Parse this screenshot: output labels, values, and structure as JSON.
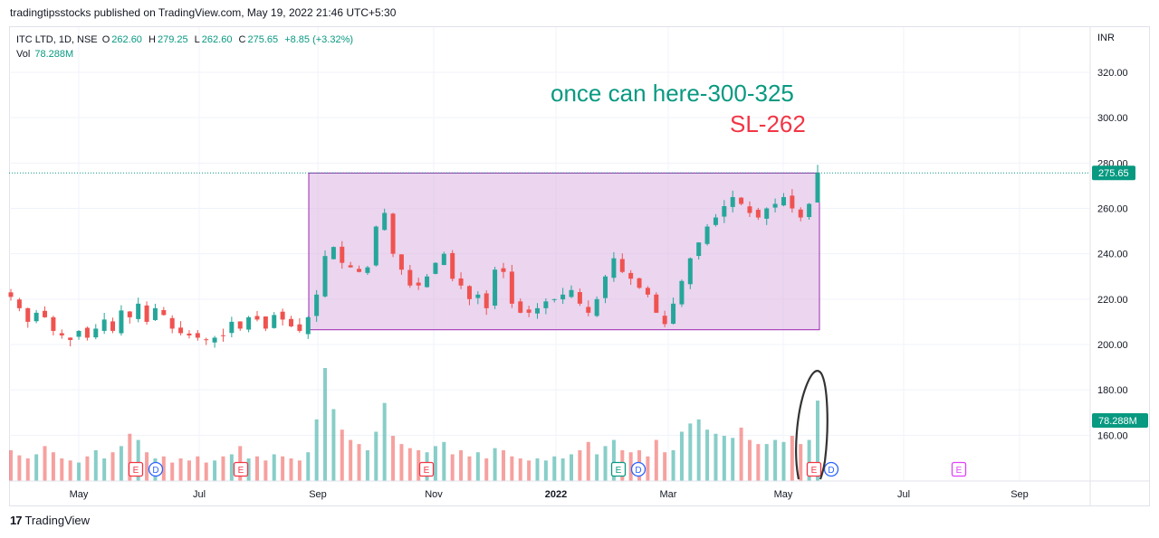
{
  "publisher": "tradingtipsstocks published on TradingView.com, May 19, 2022 21:46 UTC+5:30",
  "footer": {
    "brand": "TradingView"
  },
  "legend": {
    "symbol": "ITC LTD, 1D, NSE",
    "o_label": "O",
    "o": "262.60",
    "h_label": "H",
    "h": "279.25",
    "l_label": "L",
    "l": "262.60",
    "c_label": "C",
    "c": "275.65",
    "chg": "+8.85 (+3.32%)",
    "vol_label": "Vol",
    "vol": "78.288M"
  },
  "colors": {
    "up": "#26a69a",
    "down": "#ef5350",
    "box_fill": "#e1bee7",
    "box_stroke": "#9c27b0",
    "note_green": "#089981",
    "note_red": "#f23645",
    "badge_price": "#089981"
  },
  "annotations": {
    "target": "once can here-300-325",
    "stop": "SL-262"
  },
  "chart_data": {
    "type": "candlestick",
    "currency": "INR",
    "y_ticks": [
      "320.00",
      "300.00",
      "280.00",
      "260.00",
      "240.00",
      "220.00",
      "200.00",
      "180.00",
      "160.00"
    ],
    "x_ticks": [
      "May",
      "Jul",
      "Sep",
      "Nov",
      "2022",
      "Mar",
      "May",
      "Jul",
      "Sep"
    ],
    "last_price": "275.65",
    "last_volume": "78.288M",
    "range_box": {
      "low": 206.5,
      "high": 275.6
    },
    "closes": [
      221,
      216,
      210,
      214,
      212,
      206,
      204,
      202,
      206,
      203,
      207,
      211,
      206,
      215,
      212,
      218,
      210,
      216,
      213,
      207,
      205,
      204,
      203,
      202,
      203,
      204,
      210,
      207,
      212,
      211,
      207,
      213,
      211,
      208,
      206,
      212,
      222,
      239,
      243,
      236,
      234,
      232,
      234,
      252,
      258,
      240,
      233,
      226,
      226,
      230,
      236,
      240,
      229,
      226,
      220,
      222,
      216,
      233,
      232,
      218,
      214,
      214,
      216,
      219,
      220,
      222,
      224,
      218,
      214,
      220,
      230,
      238,
      232,
      229,
      225,
      222,
      214,
      209,
      218,
      228,
      238,
      245,
      252,
      256,
      261,
      265,
      262,
      258,
      256,
      260,
      262,
      265,
      260,
      256,
      262,
      275.65
    ],
    "volumes_m": [
      30,
      25,
      22,
      26,
      34,
      28,
      22,
      20,
      18,
      24,
      30,
      22,
      28,
      34,
      46,
      40,
      28,
      22,
      24,
      18,
      22,
      20,
      24,
      18,
      20,
      24,
      26,
      34,
      22,
      24,
      20,
      26,
      24,
      22,
      20,
      28,
      60,
      110,
      70,
      50,
      40,
      36,
      30,
      48,
      76,
      44,
      36,
      32,
      30,
      28,
      34,
      38,
      26,
      30,
      24,
      28,
      22,
      32,
      30,
      24,
      22,
      20,
      22,
      20,
      24,
      22,
      26,
      30,
      38,
      26,
      34,
      40,
      30,
      28,
      30,
      24,
      40,
      28,
      30,
      48,
      56,
      60,
      50,
      46,
      44,
      42,
      52,
      40,
      36,
      36,
      40,
      38,
      44,
      36,
      40,
      78.288
    ],
    "events": [
      {
        "label": "E",
        "type": "earnings"
      },
      {
        "label": "D",
        "type": "dividend"
      },
      {
        "label": "E",
        "type": "earnings"
      },
      {
        "label": "E",
        "type": "earnings"
      },
      {
        "label": "E",
        "type": "earnings"
      },
      {
        "label": "D",
        "type": "dividend"
      },
      {
        "label": "E",
        "type": "earnings"
      },
      {
        "label": "D",
        "type": "dividend"
      },
      {
        "label": "E",
        "type": "earnings-upcoming"
      }
    ]
  }
}
